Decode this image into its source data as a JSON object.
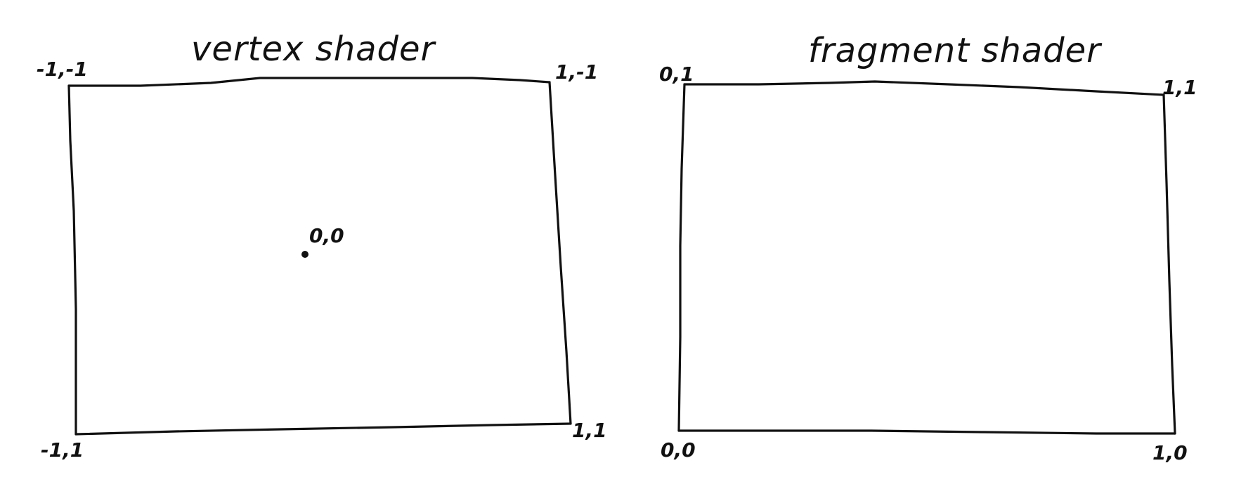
{
  "vertex_panel": {
    "title": "vertex shader",
    "corner_top_left": "-1,-1",
    "corner_top_right": "1,-1",
    "corner_bottom_left": "-1,1",
    "corner_bottom_right": "1,1",
    "center_label": "0,0"
  },
  "fragment_panel": {
    "title": "fragment shader",
    "corner_top_left": "0,1",
    "corner_top_right": "1,1",
    "corner_bottom_left": "0,0",
    "corner_bottom_right": "1,0"
  },
  "colors": {
    "ink": "#111111",
    "background": "#ffffff"
  }
}
